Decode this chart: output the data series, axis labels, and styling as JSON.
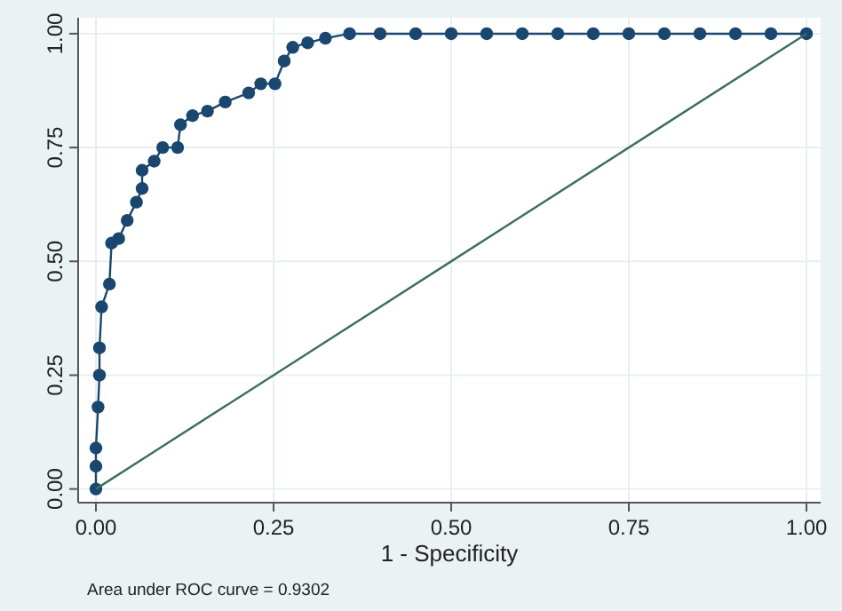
{
  "chart_data": {
    "type": "line",
    "xlabel": "1 - Specificity",
    "annotations": [
      "Area under ROC curve = 0.9302"
    ],
    "xlim": [
      -0.025,
      1.02
    ],
    "ylim": [
      -0.03,
      1.035
    ],
    "xticks": [
      {
        "value": 0,
        "label": "0.00"
      },
      {
        "value": 0.25,
        "label": "0.25"
      },
      {
        "value": 0.5,
        "label": "0.50"
      },
      {
        "value": 0.75,
        "label": "0.75"
      },
      {
        "value": 1,
        "label": "1.00"
      }
    ],
    "yticks": [
      {
        "value": 0,
        "label": "0.00"
      },
      {
        "value": 0.25,
        "label": "0.25"
      },
      {
        "value": 0.5,
        "label": "0.50"
      },
      {
        "value": 0.75,
        "label": "0.75"
      },
      {
        "value": 1,
        "label": "1.00"
      }
    ],
    "grid": true,
    "marker": "circle",
    "series": [
      {
        "color": "#1a476f",
        "x": [
          0,
          0,
          0,
          0.003,
          0.005,
          0.005,
          0.008,
          0.019,
          0.022,
          0.032,
          0.044,
          0.057,
          0.065,
          0.065,
          0.082,
          0.094,
          0.115,
          0.119,
          0.136,
          0.157,
          0.182,
          0.215,
          0.232,
          0.252,
          0.265,
          0.277,
          0.298,
          0.323,
          0.357,
          0.4,
          0.45,
          0.5,
          0.55,
          0.6,
          0.65,
          0.7,
          0.75,
          0.8,
          0.85,
          0.9,
          0.95,
          1
        ],
        "values": [
          0,
          0.05,
          0.09,
          0.18,
          0.25,
          0.31,
          0.4,
          0.45,
          0.54,
          0.55,
          0.59,
          0.63,
          0.66,
          0.7,
          0.72,
          0.75,
          0.75,
          0.8,
          0.82,
          0.83,
          0.85,
          0.87,
          0.89,
          0.89,
          0.94,
          0.97,
          0.98,
          0.99,
          1,
          1,
          1,
          1,
          1,
          1,
          1,
          1,
          1,
          1,
          1,
          1,
          1,
          1
        ]
      },
      {
        "type": "line",
        "marker": "none",
        "color": "#3b6e5c",
        "x": [
          0,
          1
        ],
        "values": [
          0,
          1
        ]
      }
    ]
  }
}
